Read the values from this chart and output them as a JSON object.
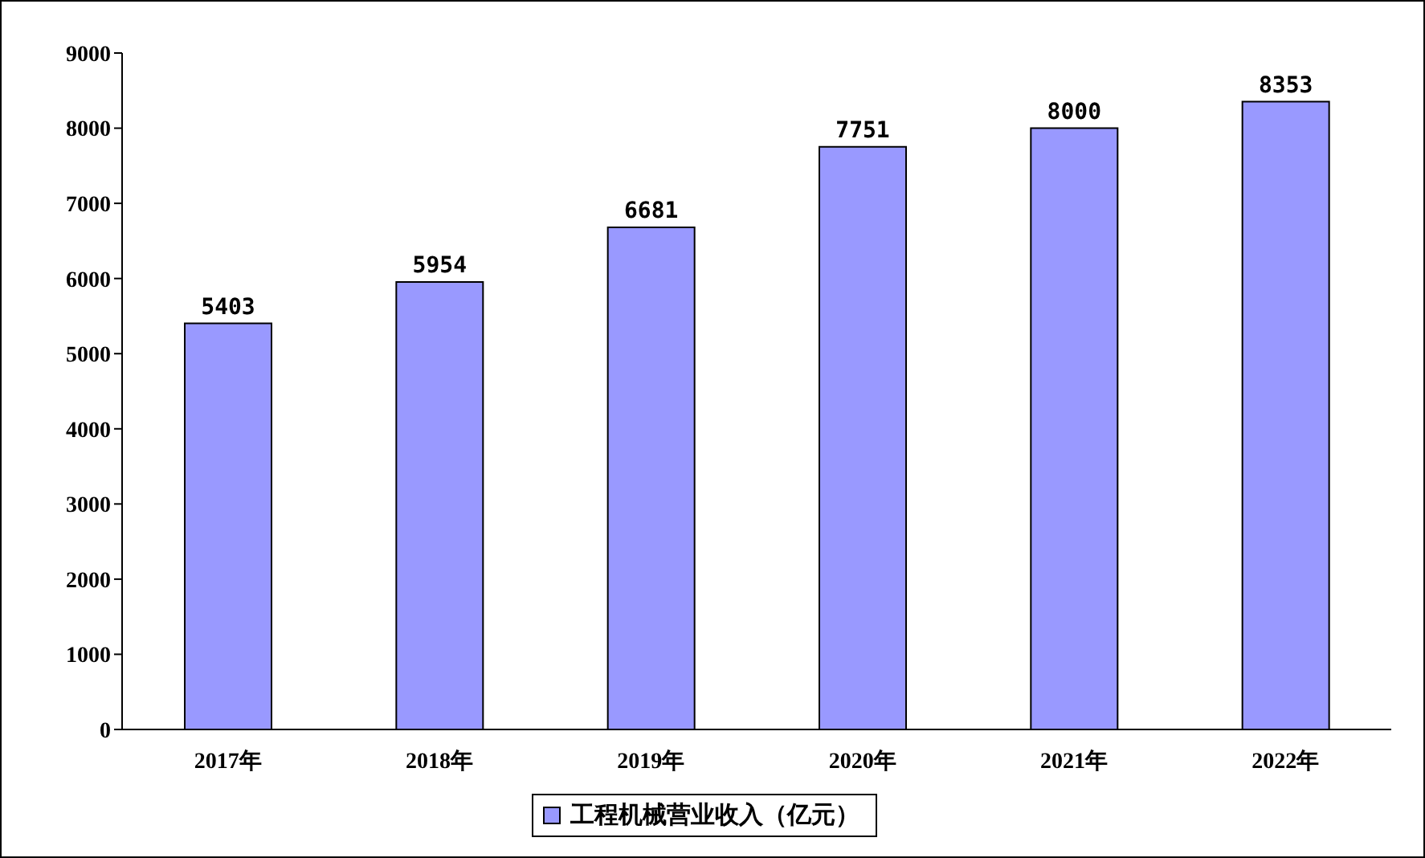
{
  "chart_data": {
    "type": "bar",
    "categories": [
      "2017年",
      "2018年",
      "2019年",
      "2020年",
      "2021年",
      "2022年"
    ],
    "series": [
      {
        "name": "工程机械营业收入（亿元）",
        "color": "#9999ff",
        "values": [
          5403,
          5954,
          6681,
          7751,
          8000,
          8353
        ]
      }
    ],
    "ylim": [
      0,
      9000
    ],
    "yticks": [
      0,
      1000,
      2000,
      3000,
      4000,
      5000,
      6000,
      7000,
      8000,
      9000
    ],
    "grid": false,
    "legend": "bottom",
    "data_labels": true
  }
}
